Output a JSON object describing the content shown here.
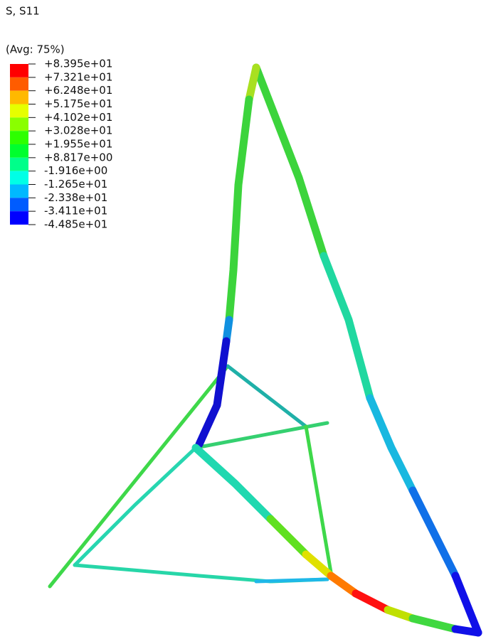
{
  "header": {
    "title": "S, S11",
    "subtitle": "(Avg: 75%)"
  },
  "legend": {
    "labels": [
      "+8.395e+01",
      "+7.321e+01",
      "+6.248e+01",
      "+5.175e+01",
      "+4.102e+01",
      "+3.028e+01",
      "+1.955e+01",
      "+8.817e+00",
      "-1.916e+00",
      "-1.265e+01",
      "-2.338e+01",
      "-3.411e+01",
      "-4.485e+01"
    ],
    "colors": [
      "#ff0000",
      "#ff5c00",
      "#ffb900",
      "#e6ff00",
      "#8aff00",
      "#2eff00",
      "#00ff2e",
      "#00ff8a",
      "#00ffe6",
      "#00b9ff",
      "#005cff",
      "#0000ff"
    ]
  }
}
